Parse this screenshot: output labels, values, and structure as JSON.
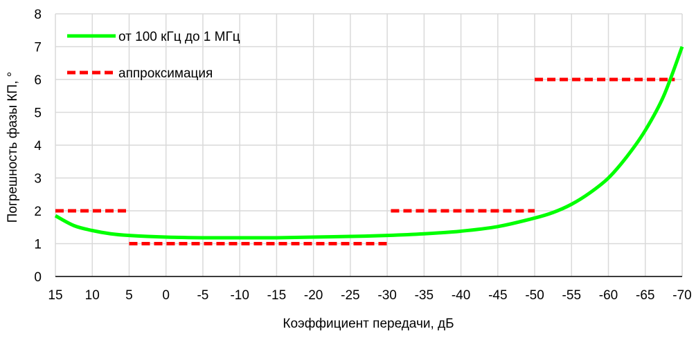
{
  "chart_data": {
    "type": "line",
    "title": "",
    "xlabel": "Коэффициент передачи, дБ",
    "ylabel": "Погрешность фазы КП, °",
    "xlim": [
      15,
      -70
    ],
    "ylim": [
      0,
      8
    ],
    "x_ticks": [
      15,
      10,
      5,
      0,
      -5,
      -10,
      -15,
      -20,
      -25,
      -30,
      -35,
      -40,
      -45,
      -50,
      -55,
      -60,
      -65,
      -70
    ],
    "x_tick_labels": [
      "15",
      "10",
      "5",
      "0",
      "-5",
      "-10",
      "-15",
      "-20",
      "-25",
      "-30",
      "-35",
      "-40",
      "-45",
      "-50",
      "-55",
      "-60",
      "-65",
      "-70"
    ],
    "y_ticks": [
      0,
      1,
      2,
      3,
      4,
      5,
      6,
      7,
      8
    ],
    "y_tick_labels": [
      "0",
      "1",
      "2",
      "3",
      "4",
      "5",
      "6",
      "7",
      "8"
    ],
    "grid": true,
    "legend_position": "top-left",
    "series": [
      {
        "name": "от 100 кГц до 1 МГц",
        "color": "#00ff00",
        "style": "solid",
        "x": [
          15,
          12.5,
          10,
          7.5,
          5,
          0,
          -5,
          -10,
          -15,
          -20,
          -25,
          -30,
          -35,
          -40,
          -45,
          -50,
          -52.5,
          -55,
          -57.5,
          -60,
          -62.5,
          -65,
          -67.5,
          -70
        ],
        "y": [
          1.85,
          1.55,
          1.4,
          1.3,
          1.25,
          1.2,
          1.18,
          1.18,
          1.18,
          1.2,
          1.22,
          1.25,
          1.3,
          1.38,
          1.52,
          1.78,
          1.95,
          2.2,
          2.55,
          3.0,
          3.65,
          4.45,
          5.5,
          7.0
        ]
      },
      {
        "name": "аппроксимация",
        "color": "#ff0000",
        "style": "dashed",
        "segments": [
          {
            "x": [
              15,
              5
            ],
            "y": [
              2,
              2
            ]
          },
          {
            "x": [
              5,
              -30
            ],
            "y": [
              1,
              1
            ]
          },
          {
            "x": [
              -30.5,
              -50
            ],
            "y": [
              2,
              2
            ]
          },
          {
            "x": [
              -50,
              -69
            ],
            "y": [
              6,
              6
            ]
          }
        ]
      }
    ]
  }
}
